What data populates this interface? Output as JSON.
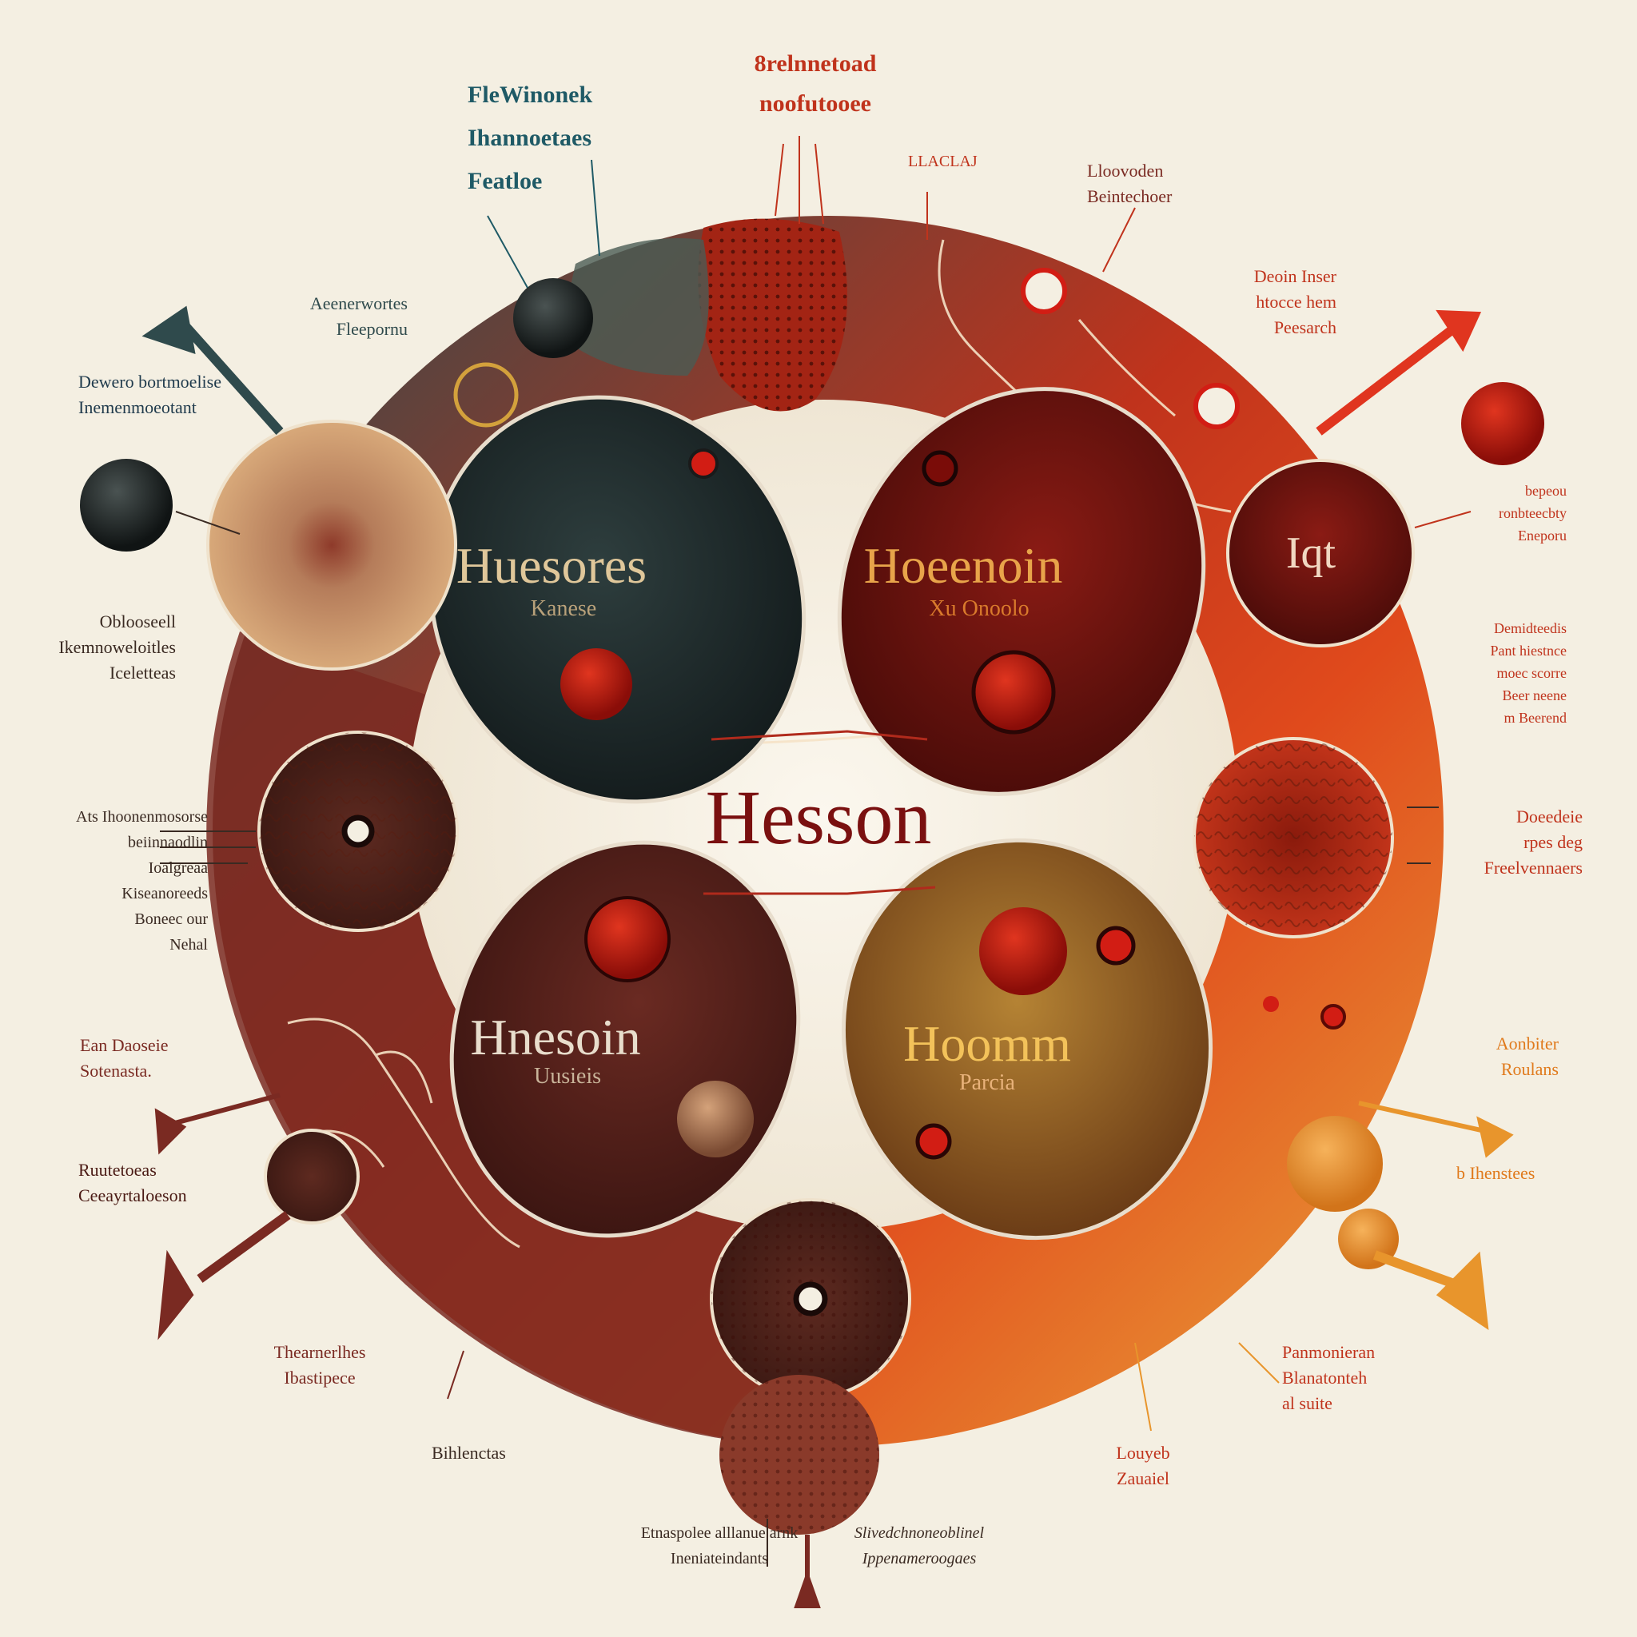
{
  "center_title": "Hesson",
  "colors": {
    "background": "#f4efe2",
    "ring_teal": "#2f4a4c",
    "ring_red": "#d8401b",
    "ring_orange": "#e8952c",
    "ring_maroon": "#7a2a22",
    "title": "#7a1010"
  },
  "ovals": [
    {
      "title": "Huesores",
      "subtitle": "Kanese"
    },
    {
      "title": "Hoeenoin",
      "subtitle": "Xu Onoolo"
    },
    {
      "title": "Hnesoin",
      "subtitle": "Uusieis"
    },
    {
      "title": "Hoomm",
      "subtitle": "Parcia"
    }
  ],
  "small_circle_text": "Iqt",
  "labels": [
    {
      "lines": [
        "FleWinonek",
        "Ihannoetaes",
        "Featloe"
      ]
    },
    {
      "lines": [
        "8relnnetoad",
        "noofutooee"
      ]
    },
    {
      "lines": [
        "LLACLAJ"
      ]
    },
    {
      "lines": [
        "Lloovoden",
        "Beintechoer"
      ]
    },
    {
      "lines": [
        "Deoin Inser",
        "htocce hem",
        "Peesarch"
      ]
    },
    {
      "lines": [
        "Aeenerwortes",
        "Fleepornu"
      ]
    },
    {
      "lines": [
        "Dewero bortmoelise",
        "Inemenmoeotant"
      ]
    },
    {
      "lines": [
        "bepeou",
        "ronbteecbty",
        "Eneporu"
      ]
    },
    {
      "lines": [
        "Oblooseell",
        "Ikemnoweloitles",
        "Iceletteas"
      ]
    },
    {
      "lines": [
        "Demidteedis",
        "Pant hiestnce",
        "moec scorre",
        "Beer neene",
        "m Beerend"
      ]
    },
    {
      "lines": [
        "Ats Ihoonenmosorse",
        "beiinnaodlin",
        "Ioalgreaa",
        "Kiseanoreeds",
        "Boneec our",
        "Nehal"
      ]
    },
    {
      "lines": [
        "Doeedeie",
        "rpes deg",
        "Freelvennaers"
      ]
    },
    {
      "lines": [
        "Ean Daoseie",
        "Sotenasta."
      ]
    },
    {
      "lines": [
        "Aonbiter",
        "Roulans"
      ]
    },
    {
      "lines": [
        "Ruutetoeas",
        "Ceeayrtaloeson"
      ]
    },
    {
      "lines": [
        "b Ihenstees"
      ]
    },
    {
      "lines": [
        "Thearnerlhes",
        "Ibastipece"
      ]
    },
    {
      "lines": [
        "Panmonieran",
        "Blanatonteh",
        "al suite"
      ]
    },
    {
      "lines": [
        "Bihlenctas"
      ]
    },
    {
      "lines": [
        "Louyeb",
        "Zauaiel"
      ]
    },
    {
      "lines": [
        "Etnaspolee alllanue arnk",
        "Ineniateindants"
      ]
    },
    {
      "lines": [
        "Slivedchnoneoblinel",
        "Ippenameroogaes"
      ]
    }
  ]
}
